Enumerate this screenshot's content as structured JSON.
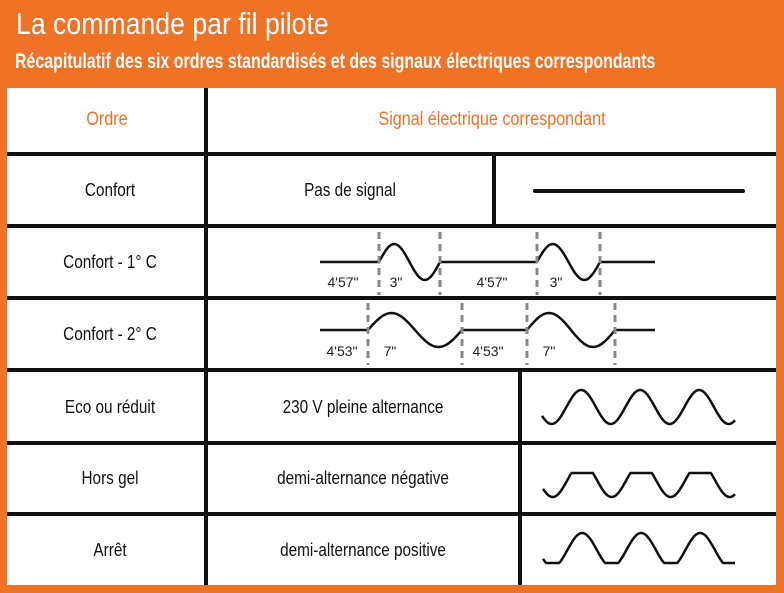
{
  "title": "La commande par fil pilote",
  "subtitle": "Récapitulatif des six ordres standardisés et des signaux électriques correspondants",
  "table": {
    "headers": {
      "order": "Ordre",
      "signal": "Signal électrique correspondant"
    },
    "rows": [
      {
        "order": "Confort",
        "signal": "Pas de signal",
        "waveform": "flat-line"
      },
      {
        "order": "Confort - 1° C",
        "waveform": "pulse-3s",
        "timings": [
          "4'57\"",
          "3\"",
          "4'57\"",
          "3\""
        ]
      },
      {
        "order": "Confort - 2° C",
        "waveform": "pulse-7s",
        "timings": [
          "4'53\"",
          "7\"",
          "4'53\"",
          "7\""
        ]
      },
      {
        "order": "Eco ou réduit",
        "signal": "230 V pleine alternance",
        "waveform": "full-sine"
      },
      {
        "order": "Hors gel",
        "signal": "demi-alternance négative",
        "waveform": "negative-half-wave"
      },
      {
        "order": "Arrêt",
        "signal": "demi-alternance positive",
        "waveform": "positive-half-wave"
      }
    ]
  },
  "colors": {
    "accent": "#F07225",
    "text": "#111111",
    "background": "#FFFFFF"
  }
}
